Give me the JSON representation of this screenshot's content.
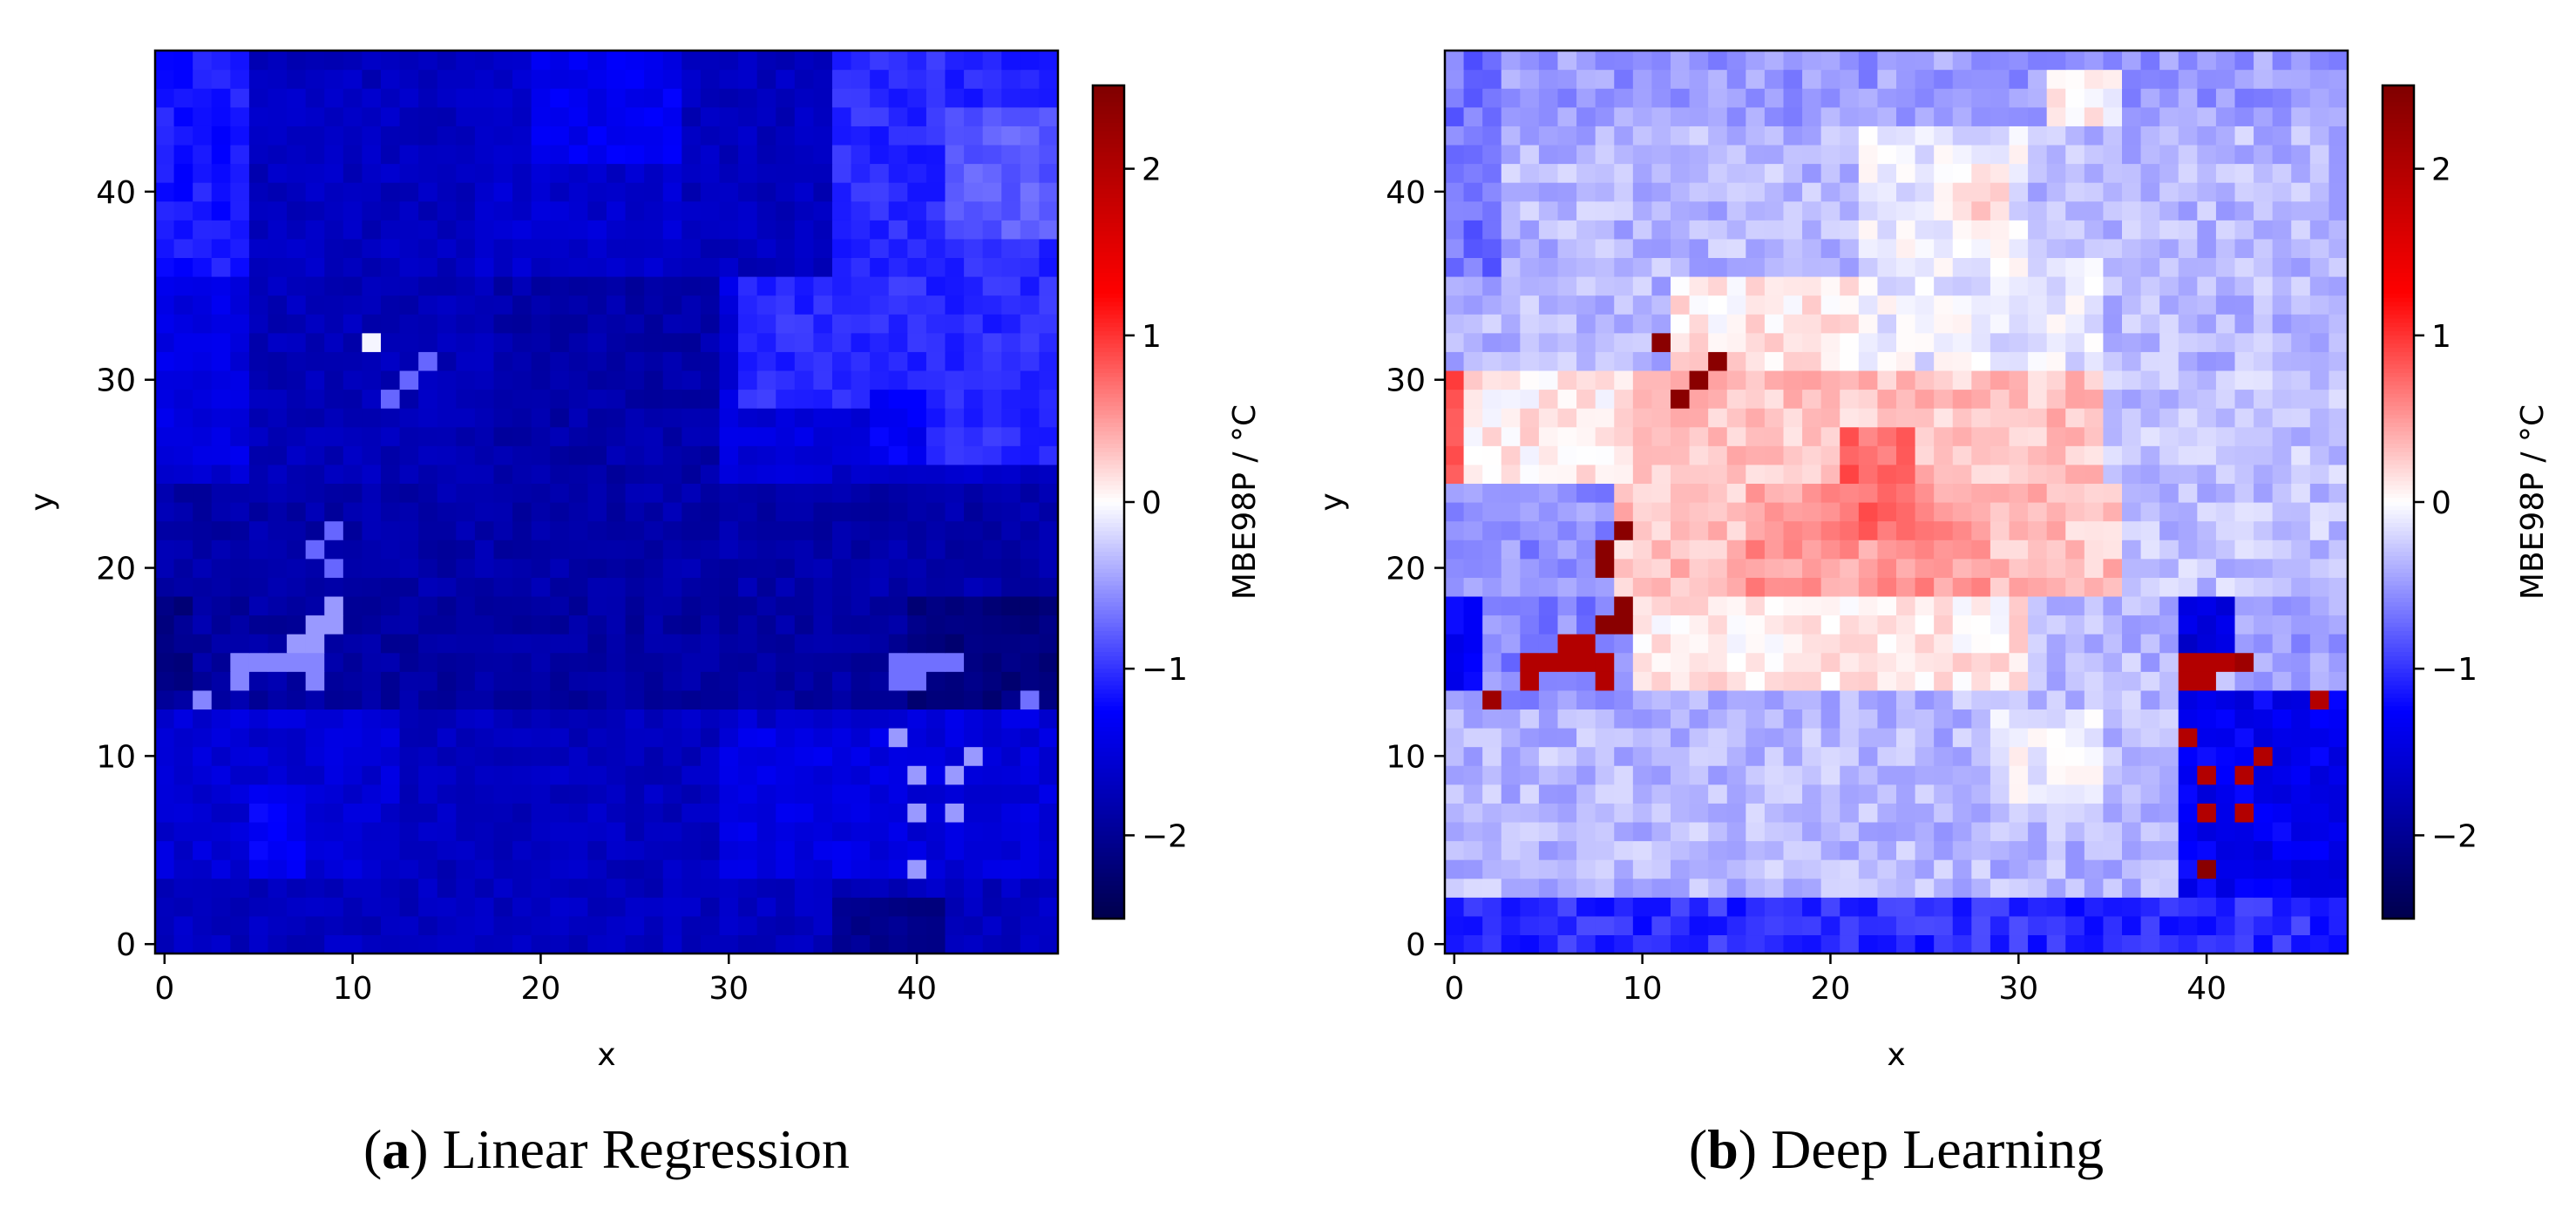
{
  "figure": {
    "captions": [
      {
        "label": "a",
        "text": " Linear Regression"
      },
      {
        "label": "b",
        "text": " Deep Learning"
      }
    ]
  },
  "chart_data": [
    {
      "type": "heatmap",
      "id": "linear-regression",
      "title": "",
      "xlabel": "x",
      "ylabel": "y",
      "xlim": [
        -0.5,
        47.5
      ],
      "ylim": [
        -0.5,
        47.5
      ],
      "xticks": [
        0,
        10,
        20,
        30,
        40
      ],
      "yticks": [
        0,
        10,
        20,
        30,
        40
      ],
      "grid_size": 48,
      "colorbar": {
        "label": "MBE98P / °C",
        "range": [
          -2.5,
          2.5
        ],
        "ticks": [
          -2,
          -1,
          0,
          1,
          2
        ],
        "colormap": "seismic"
      },
      "regions": [
        {
          "x": [
            0,
            47
          ],
          "y": [
            0,
            47
          ],
          "value": -1.6
        },
        {
          "x": [
            0,
            4
          ],
          "y": [
            36,
            47
          ],
          "value": -1.15
        },
        {
          "x": [
            0,
            4
          ],
          "y": [
            26,
            35
          ],
          "value": -1.45
        },
        {
          "x": [
            5,
            16
          ],
          "y": [
            36,
            47
          ],
          "value": -1.7
        },
        {
          "x": [
            17,
            27
          ],
          "y": [
            36,
            47
          ],
          "value": -1.6
        },
        {
          "x": [
            20,
            28
          ],
          "y": [
            42,
            47
          ],
          "value": -1.35
        },
        {
          "x": [
            28,
            35
          ],
          "y": [
            36,
            47
          ],
          "value": -1.7
        },
        {
          "x": [
            36,
            47
          ],
          "y": [
            36,
            47
          ],
          "value": -1.05
        },
        {
          "x": [
            42,
            47
          ],
          "y": [
            38,
            44
          ],
          "value": -0.8
        },
        {
          "x": [
            5,
            17
          ],
          "y": [
            25,
            35
          ],
          "value": -1.75
        },
        {
          "x": [
            18,
            29
          ],
          "y": [
            25,
            35
          ],
          "value": -1.85
        },
        {
          "x": [
            30,
            35
          ],
          "y": [
            25,
            35
          ],
          "value": -1.5
        },
        {
          "x": [
            31,
            37
          ],
          "y": [
            29,
            35
          ],
          "value": -1.05
        },
        {
          "x": [
            38,
            47
          ],
          "y": [
            26,
            35
          ],
          "value": -1.05
        },
        {
          "x": [
            38,
            40
          ],
          "y": [
            26,
            29
          ],
          "value": -1.3
        },
        {
          "x": [
            0,
            47
          ],
          "y": [
            19,
            24
          ],
          "value": -1.85
        },
        {
          "x": [
            0,
            47
          ],
          "y": [
            13,
            18
          ],
          "value": -1.9
        },
        {
          "x": [
            0,
            1
          ],
          "y": [
            14,
            18
          ],
          "value": -2.1
        },
        {
          "x": [
            40,
            47
          ],
          "y": [
            13,
            18
          ],
          "value": -2.15
        },
        {
          "x": [
            0,
            12
          ],
          "y": [
            4,
            12
          ],
          "value": -1.55
        },
        {
          "x": [
            5,
            7
          ],
          "y": [
            3,
            8
          ],
          "value": -1.3
        },
        {
          "x": [
            13,
            29
          ],
          "y": [
            4,
            12
          ],
          "value": -1.7
        },
        {
          "x": [
            30,
            38
          ],
          "y": [
            4,
            11
          ],
          "value": -1.45
        },
        {
          "x": [
            39,
            47
          ],
          "y": [
            3,
            12
          ],
          "value": -1.5
        },
        {
          "x": [
            0,
            47
          ],
          "y": [
            0,
            3
          ],
          "value": -1.7
        },
        {
          "x": [
            36,
            41
          ],
          "y": [
            0,
            2
          ],
          "value": -2.05
        }
      ],
      "cells": [
        {
          "x": 11,
          "y": 32,
          "value": -0.05
        },
        {
          "x": 12,
          "y": 29,
          "value": -0.75
        },
        {
          "x": 13,
          "y": 30,
          "value": -0.75
        },
        {
          "x": 14,
          "y": 31,
          "value": -0.75
        },
        {
          "x": 9,
          "y": 22,
          "value": -0.75
        },
        {
          "x": 8,
          "y": 21,
          "value": -0.75
        },
        {
          "x": 9,
          "y": 20,
          "value": -0.75
        },
        {
          "x": 9,
          "y": 18,
          "value": -0.5
        },
        {
          "x": 8,
          "y": 17,
          "value": -0.5
        },
        {
          "x": 9,
          "y": 17,
          "value": -0.5
        },
        {
          "x": 7,
          "y": 16,
          "value": -0.5
        },
        {
          "x": 8,
          "y": 16,
          "value": -0.5
        },
        {
          "x": 4,
          "y": 15,
          "value": -0.6
        },
        {
          "x": 5,
          "y": 15,
          "value": -0.6
        },
        {
          "x": 6,
          "y": 15,
          "value": -0.6
        },
        {
          "x": 7,
          "y": 15,
          "value": -0.6
        },
        {
          "x": 8,
          "y": 15,
          "value": -0.6
        },
        {
          "x": 4,
          "y": 14,
          "value": -0.6
        },
        {
          "x": 8,
          "y": 14,
          "value": -0.6
        },
        {
          "x": 2,
          "y": 13,
          "value": -0.6
        },
        {
          "x": 39,
          "y": 15,
          "value": -0.7
        },
        {
          "x": 40,
          "y": 15,
          "value": -0.7
        },
        {
          "x": 41,
          "y": 15,
          "value": -0.7
        },
        {
          "x": 42,
          "y": 15,
          "value": -0.7
        },
        {
          "x": 39,
          "y": 14,
          "value": -0.7
        },
        {
          "x": 40,
          "y": 14,
          "value": -0.7
        },
        {
          "x": 46,
          "y": 13,
          "value": -0.7
        },
        {
          "x": 39,
          "y": 11,
          "value": -0.5
        },
        {
          "x": 43,
          "y": 10,
          "value": -0.5
        },
        {
          "x": 40,
          "y": 9,
          "value": -0.5
        },
        {
          "x": 42,
          "y": 9,
          "value": -0.5
        },
        {
          "x": 40,
          "y": 7,
          "value": -0.5
        },
        {
          "x": 42,
          "y": 7,
          "value": -0.5
        },
        {
          "x": 40,
          "y": 4,
          "value": -0.5
        }
      ],
      "noise": 0.12,
      "seed": 7
    },
    {
      "type": "heatmap",
      "id": "deep-learning",
      "title": "",
      "xlabel": "x",
      "ylabel": "y",
      "xlim": [
        -0.5,
        47.5
      ],
      "ylim": [
        -0.5,
        47.5
      ],
      "xticks": [
        0,
        10,
        20,
        30,
        40
      ],
      "yticks": [
        0,
        10,
        20,
        30,
        40
      ],
      "grid_size": 48,
      "colorbar": {
        "label": "MBE98P / °C",
        "range": [
          -2.5,
          2.5
        ],
        "ticks": [
          -2,
          -1,
          0,
          1,
          2
        ],
        "colormap": "seismic"
      },
      "regions": [
        {
          "x": [
            0,
            47
          ],
          "y": [
            0,
            47
          ],
          "value": -0.35
        },
        {
          "x": [
            0,
            47
          ],
          "y": [
            44,
            47
          ],
          "value": -0.5
        },
        {
          "x": [
            0,
            2
          ],
          "y": [
            36,
            47
          ],
          "value": -0.7
        },
        {
          "x": [
            22,
            30
          ],
          "y": [
            37,
            43
          ],
          "value": -0.1
        },
        {
          "x": [
            27,
            29
          ],
          "y": [
            38,
            41
          ],
          "value": 0.15
        },
        {
          "x": [
            32,
            35
          ],
          "y": [
            44,
            46
          ],
          "value": 0.05
        },
        {
          "x": [
            12,
            22
          ],
          "y": [
            31,
            35
          ],
          "value": 0.12
        },
        {
          "x": [
            22,
            34
          ],
          "y": [
            31,
            36
          ],
          "value": -0.1
        },
        {
          "x": [
            0,
            10
          ],
          "y": [
            25,
            30
          ],
          "value": 0.1
        },
        {
          "x": [
            10,
            35
          ],
          "y": [
            25,
            30
          ],
          "value": 0.3
        },
        {
          "x": [
            35,
            47
          ],
          "y": [
            25,
            30
          ],
          "value": -0.3
        },
        {
          "x": [
            0,
            0
          ],
          "y": [
            25,
            30
          ],
          "value": 0.95
        },
        {
          "x": [
            8,
            35
          ],
          "y": [
            19,
            24
          ],
          "value": 0.3
        },
        {
          "x": [
            16,
            28
          ],
          "y": [
            19,
            24
          ],
          "value": 0.5
        },
        {
          "x": [
            21,
            24
          ],
          "y": [
            22,
            27
          ],
          "value": 0.75
        },
        {
          "x": [
            0,
            8
          ],
          "y": [
            19,
            24
          ],
          "value": -0.55
        },
        {
          "x": [
            36,
            47
          ],
          "y": [
            19,
            24
          ],
          "value": -0.3
        },
        {
          "x": [
            10,
            30
          ],
          "y": [
            14,
            18
          ],
          "value": 0.1
        },
        {
          "x": [
            0,
            9
          ],
          "y": [
            13,
            18
          ],
          "value": -0.6
        },
        {
          "x": [
            0,
            1
          ],
          "y": [
            14,
            18
          ],
          "value": -1.25
        },
        {
          "x": [
            39,
            41
          ],
          "y": [
            16,
            18
          ],
          "value": -1.55
        },
        {
          "x": [
            39,
            47
          ],
          "y": [
            0,
            13
          ],
          "value": -1.35
        },
        {
          "x": [
            42,
            47
          ],
          "y": [
            14,
            18
          ],
          "value": -0.5
        },
        {
          "x": [
            0,
            38
          ],
          "y": [
            4,
            12
          ],
          "value": -0.35
        },
        {
          "x": [
            29,
            34
          ],
          "y": [
            8,
            12
          ],
          "value": -0.05
        },
        {
          "x": [
            0,
            47
          ],
          "y": [
            0,
            2
          ],
          "value": -1.05
        }
      ],
      "cells": [
        {
          "x": 11,
          "y": 32,
          "value": 2.4
        },
        {
          "x": 12,
          "y": 29,
          "value": 2.4
        },
        {
          "x": 13,
          "y": 30,
          "value": 2.4
        },
        {
          "x": 14,
          "y": 31,
          "value": 2.4
        },
        {
          "x": 9,
          "y": 22,
          "value": 2.4
        },
        {
          "x": 8,
          "y": 21,
          "value": 2.4
        },
        {
          "x": 8,
          "y": 20,
          "value": 2.4
        },
        {
          "x": 9,
          "y": 18,
          "value": 2.4
        },
        {
          "x": 8,
          "y": 17,
          "value": 2.4
        },
        {
          "x": 9,
          "y": 17,
          "value": 2.4
        },
        {
          "x": 7,
          "y": 16,
          "value": 2.0
        },
        {
          "x": 6,
          "y": 16,
          "value": 2.0
        },
        {
          "x": 4,
          "y": 15,
          "value": 2.0
        },
        {
          "x": 5,
          "y": 15,
          "value": 2.0
        },
        {
          "x": 6,
          "y": 15,
          "value": 2.0
        },
        {
          "x": 7,
          "y": 15,
          "value": 2.0
        },
        {
          "x": 8,
          "y": 15,
          "value": 2.0
        },
        {
          "x": 4,
          "y": 14,
          "value": 2.0
        },
        {
          "x": 8,
          "y": 14,
          "value": 2.0
        },
        {
          "x": 2,
          "y": 13,
          "value": 2.2
        },
        {
          "x": 39,
          "y": 15,
          "value": 2.0
        },
        {
          "x": 40,
          "y": 15,
          "value": 2.0
        },
        {
          "x": 41,
          "y": 15,
          "value": 2.0
        },
        {
          "x": 42,
          "y": 15,
          "value": 2.2
        },
        {
          "x": 39,
          "y": 14,
          "value": 2.0
        },
        {
          "x": 40,
          "y": 14,
          "value": 2.0
        },
        {
          "x": 46,
          "y": 13,
          "value": 2.0
        },
        {
          "x": 39,
          "y": 11,
          "value": 2.0
        },
        {
          "x": 43,
          "y": 10,
          "value": 2.0
        },
        {
          "x": 40,
          "y": 9,
          "value": 2.0
        },
        {
          "x": 42,
          "y": 9,
          "value": 2.0
        },
        {
          "x": 40,
          "y": 7,
          "value": 2.0
        },
        {
          "x": 42,
          "y": 7,
          "value": 2.0
        },
        {
          "x": 40,
          "y": 4,
          "value": 2.4
        }
      ],
      "noise": 0.18,
      "seed": 13
    }
  ]
}
